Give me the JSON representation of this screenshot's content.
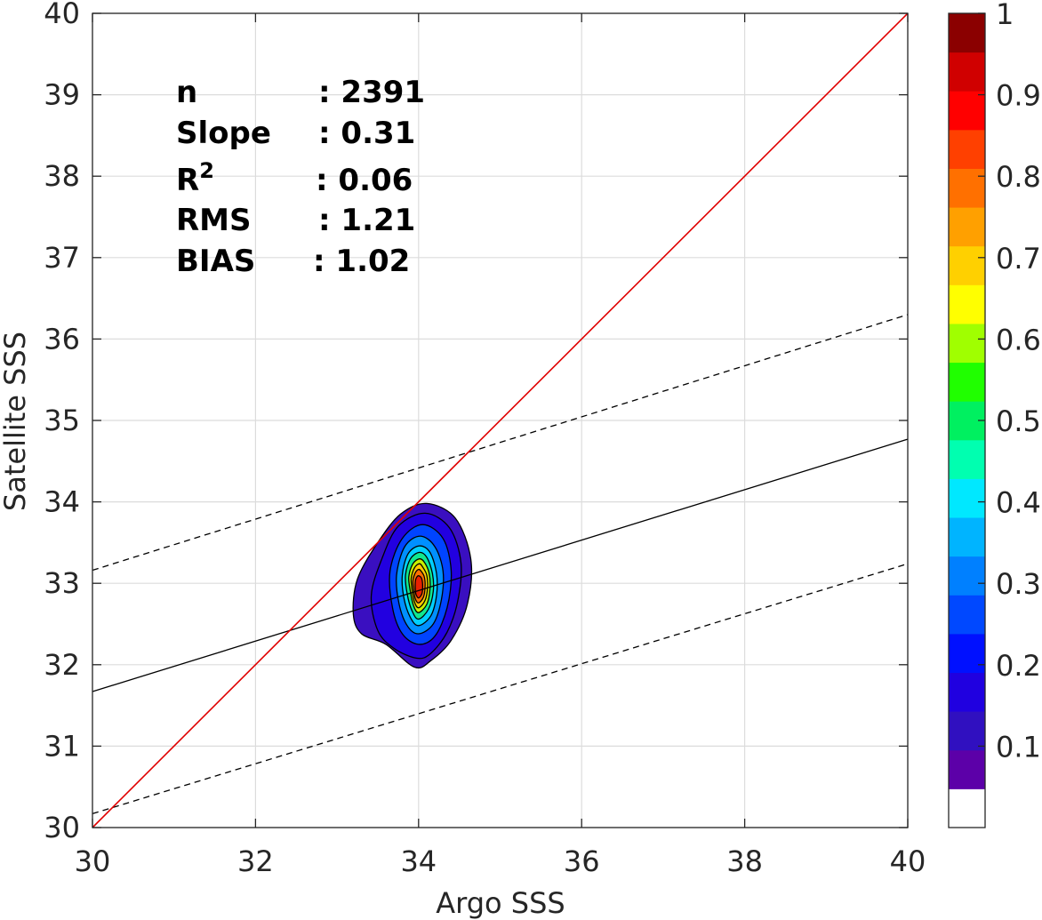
{
  "chart_data": {
    "type": "contour",
    "xlabel": "Argo SSS",
    "ylabel": "Satellite SSS",
    "xlim": [
      30,
      40
    ],
    "ylim": [
      30,
      40
    ],
    "xticks": [
      "30",
      "32",
      "34",
      "36",
      "38",
      "40"
    ],
    "yticks": [
      "30",
      "31",
      "32",
      "33",
      "34",
      "35",
      "36",
      "37",
      "38",
      "39",
      "40"
    ],
    "grid": true,
    "stats": [
      {
        "label": "n",
        "value": ": 2391"
      },
      {
        "label": "Slope",
        "value": ": 0.31"
      },
      {
        "label": "R",
        "sup": "2",
        "value": ": 0.06"
      },
      {
        "label": "RMS",
        "value": ": 1.21"
      },
      {
        "label": "BIAS",
        "value": ": 1.02"
      }
    ],
    "lines": {
      "one_to_one": {
        "x": [
          30,
          40
        ],
        "y": [
          30,
          40
        ],
        "color": "#e00000"
      },
      "regression": {
        "x": [
          30,
          40
        ],
        "y": [
          31.67,
          34.77
        ],
        "color": "#000000"
      },
      "upper_bound": {
        "x": [
          30,
          40
        ],
        "y": [
          33.16,
          36.3
        ],
        "color": "#000000",
        "dash": true
      },
      "lower_bound": {
        "x": [
          30,
          40
        ],
        "y": [
          30.17,
          33.24
        ],
        "color": "#000000",
        "dash": true
      }
    },
    "density_peak": {
      "x": 34.0,
      "y": 32.95
    },
    "contour_levels": [
      {
        "level": 0.05,
        "color": "#3a0fc0",
        "ring": [
          [
            33.95,
            31.97
          ],
          [
            34.15,
            32.05
          ],
          [
            34.4,
            32.3
          ],
          [
            34.6,
            32.75
          ],
          [
            34.64,
            33.3
          ],
          [
            34.45,
            33.8
          ],
          [
            34.1,
            33.98
          ],
          [
            33.78,
            33.85
          ],
          [
            33.5,
            33.5
          ],
          [
            33.25,
            33.05
          ],
          [
            33.2,
            32.62
          ],
          [
            33.3,
            32.38
          ],
          [
            33.6,
            32.25
          ]
        ]
      },
      {
        "level": 0.1,
        "color": "#2200e0",
        "ring": [
          [
            33.98,
            32.08
          ],
          [
            34.15,
            32.14
          ],
          [
            34.35,
            32.4
          ],
          [
            34.48,
            32.78
          ],
          [
            34.52,
            33.25
          ],
          [
            34.38,
            33.68
          ],
          [
            34.08,
            33.86
          ],
          [
            33.75,
            33.7
          ],
          [
            33.55,
            33.3
          ],
          [
            33.42,
            32.85
          ],
          [
            33.5,
            32.42
          ],
          [
            33.7,
            32.2
          ]
        ]
      },
      {
        "level": 0.2,
        "color": "#0044ff",
        "ring": [
          [
            34,
            32.25
          ],
          [
            34.2,
            32.35
          ],
          [
            34.35,
            32.7
          ],
          [
            34.4,
            33.15
          ],
          [
            34.3,
            33.55
          ],
          [
            34.05,
            33.72
          ],
          [
            33.8,
            33.55
          ],
          [
            33.65,
            33.15
          ],
          [
            33.68,
            32.7
          ],
          [
            33.8,
            32.38
          ]
        ]
      },
      {
        "level": 0.3,
        "color": "#0090ff",
        "ring": [
          [
            34,
            32.38
          ],
          [
            34.18,
            32.5
          ],
          [
            34.28,
            32.8
          ],
          [
            34.3,
            33.15
          ],
          [
            34.2,
            33.45
          ],
          [
            34.02,
            33.58
          ],
          [
            33.83,
            33.45
          ],
          [
            33.73,
            33.1
          ],
          [
            33.76,
            32.75
          ],
          [
            33.86,
            32.48
          ]
        ]
      },
      {
        "level": 0.4,
        "color": "#00d0ff",
        "ring": [
          [
            34,
            32.48
          ],
          [
            34.15,
            32.6
          ],
          [
            34.22,
            32.85
          ],
          [
            34.22,
            33.12
          ],
          [
            34.14,
            33.38
          ],
          [
            34.01,
            33.46
          ],
          [
            33.87,
            33.36
          ],
          [
            33.8,
            33.1
          ],
          [
            33.82,
            32.82
          ],
          [
            33.9,
            32.58
          ]
        ]
      },
      {
        "level": 0.5,
        "color": "#10e890",
        "ring": [
          [
            34,
            32.56
          ],
          [
            34.12,
            32.68
          ],
          [
            34.18,
            32.9
          ],
          [
            34.17,
            33.12
          ],
          [
            34.1,
            33.32
          ],
          [
            34.01,
            33.38
          ],
          [
            33.9,
            33.3
          ],
          [
            33.84,
            33.1
          ],
          [
            33.86,
            32.87
          ],
          [
            33.92,
            32.66
          ]
        ]
      },
      {
        "level": 0.6,
        "color": "#c8f000",
        "ring": [
          [
            34,
            32.64
          ],
          [
            34.1,
            32.74
          ],
          [
            34.14,
            32.93
          ],
          [
            34.13,
            33.12
          ],
          [
            34.07,
            33.26
          ],
          [
            34.01,
            33.3
          ],
          [
            33.93,
            33.24
          ],
          [
            33.88,
            33.08
          ],
          [
            33.9,
            32.9
          ],
          [
            33.94,
            32.72
          ]
        ]
      },
      {
        "level": 0.7,
        "color": "#ffc800",
        "ring": [
          [
            34,
            32.7
          ],
          [
            34.08,
            32.79
          ],
          [
            34.11,
            32.95
          ],
          [
            34.1,
            33.1
          ],
          [
            34.05,
            33.2
          ],
          [
            34.01,
            33.24
          ],
          [
            33.95,
            33.19
          ],
          [
            33.91,
            33.06
          ],
          [
            33.92,
            32.92
          ],
          [
            33.95,
            32.77
          ]
        ]
      },
      {
        "level": 0.8,
        "color": "#ff7000",
        "ring": [
          [
            34,
            32.76
          ],
          [
            34.06,
            32.83
          ],
          [
            34.08,
            32.96
          ],
          [
            34.07,
            33.08
          ],
          [
            34.03,
            33.15
          ],
          [
            34,
            33.17
          ],
          [
            33.96,
            33.13
          ],
          [
            33.93,
            33.03
          ],
          [
            33.94,
            32.92
          ],
          [
            33.96,
            32.81
          ]
        ]
      },
      {
        "level": 0.9,
        "color": "#e82000",
        "ring": [
          [
            34,
            32.82
          ],
          [
            34.04,
            32.87
          ],
          [
            34.05,
            32.96
          ],
          [
            34.04,
            33.05
          ],
          [
            34.01,
            33.09
          ],
          [
            33.98,
            33.08
          ],
          [
            33.96,
            33.02
          ],
          [
            33.96,
            32.93
          ],
          [
            33.97,
            32.86
          ]
        ]
      }
    ],
    "colorbar": {
      "ticks": [
        "0.1",
        "0.2",
        "0.3",
        "0.4",
        "0.5",
        "0.6",
        "0.7",
        "0.8",
        "0.9",
        "1"
      ],
      "colors": [
        "#ffffff",
        "#5c00a8",
        "#3010c0",
        "#2000e0",
        "#0010ff",
        "#0048ff",
        "#0080ff",
        "#00b4ff",
        "#00e8ff",
        "#00ffb0",
        "#00f060",
        "#20ff00",
        "#a0ff00",
        "#ffff00",
        "#ffd000",
        "#ffa000",
        "#ff7000",
        "#ff4000",
        "#ff0000",
        "#d00000",
        "#8b0000"
      ]
    }
  }
}
